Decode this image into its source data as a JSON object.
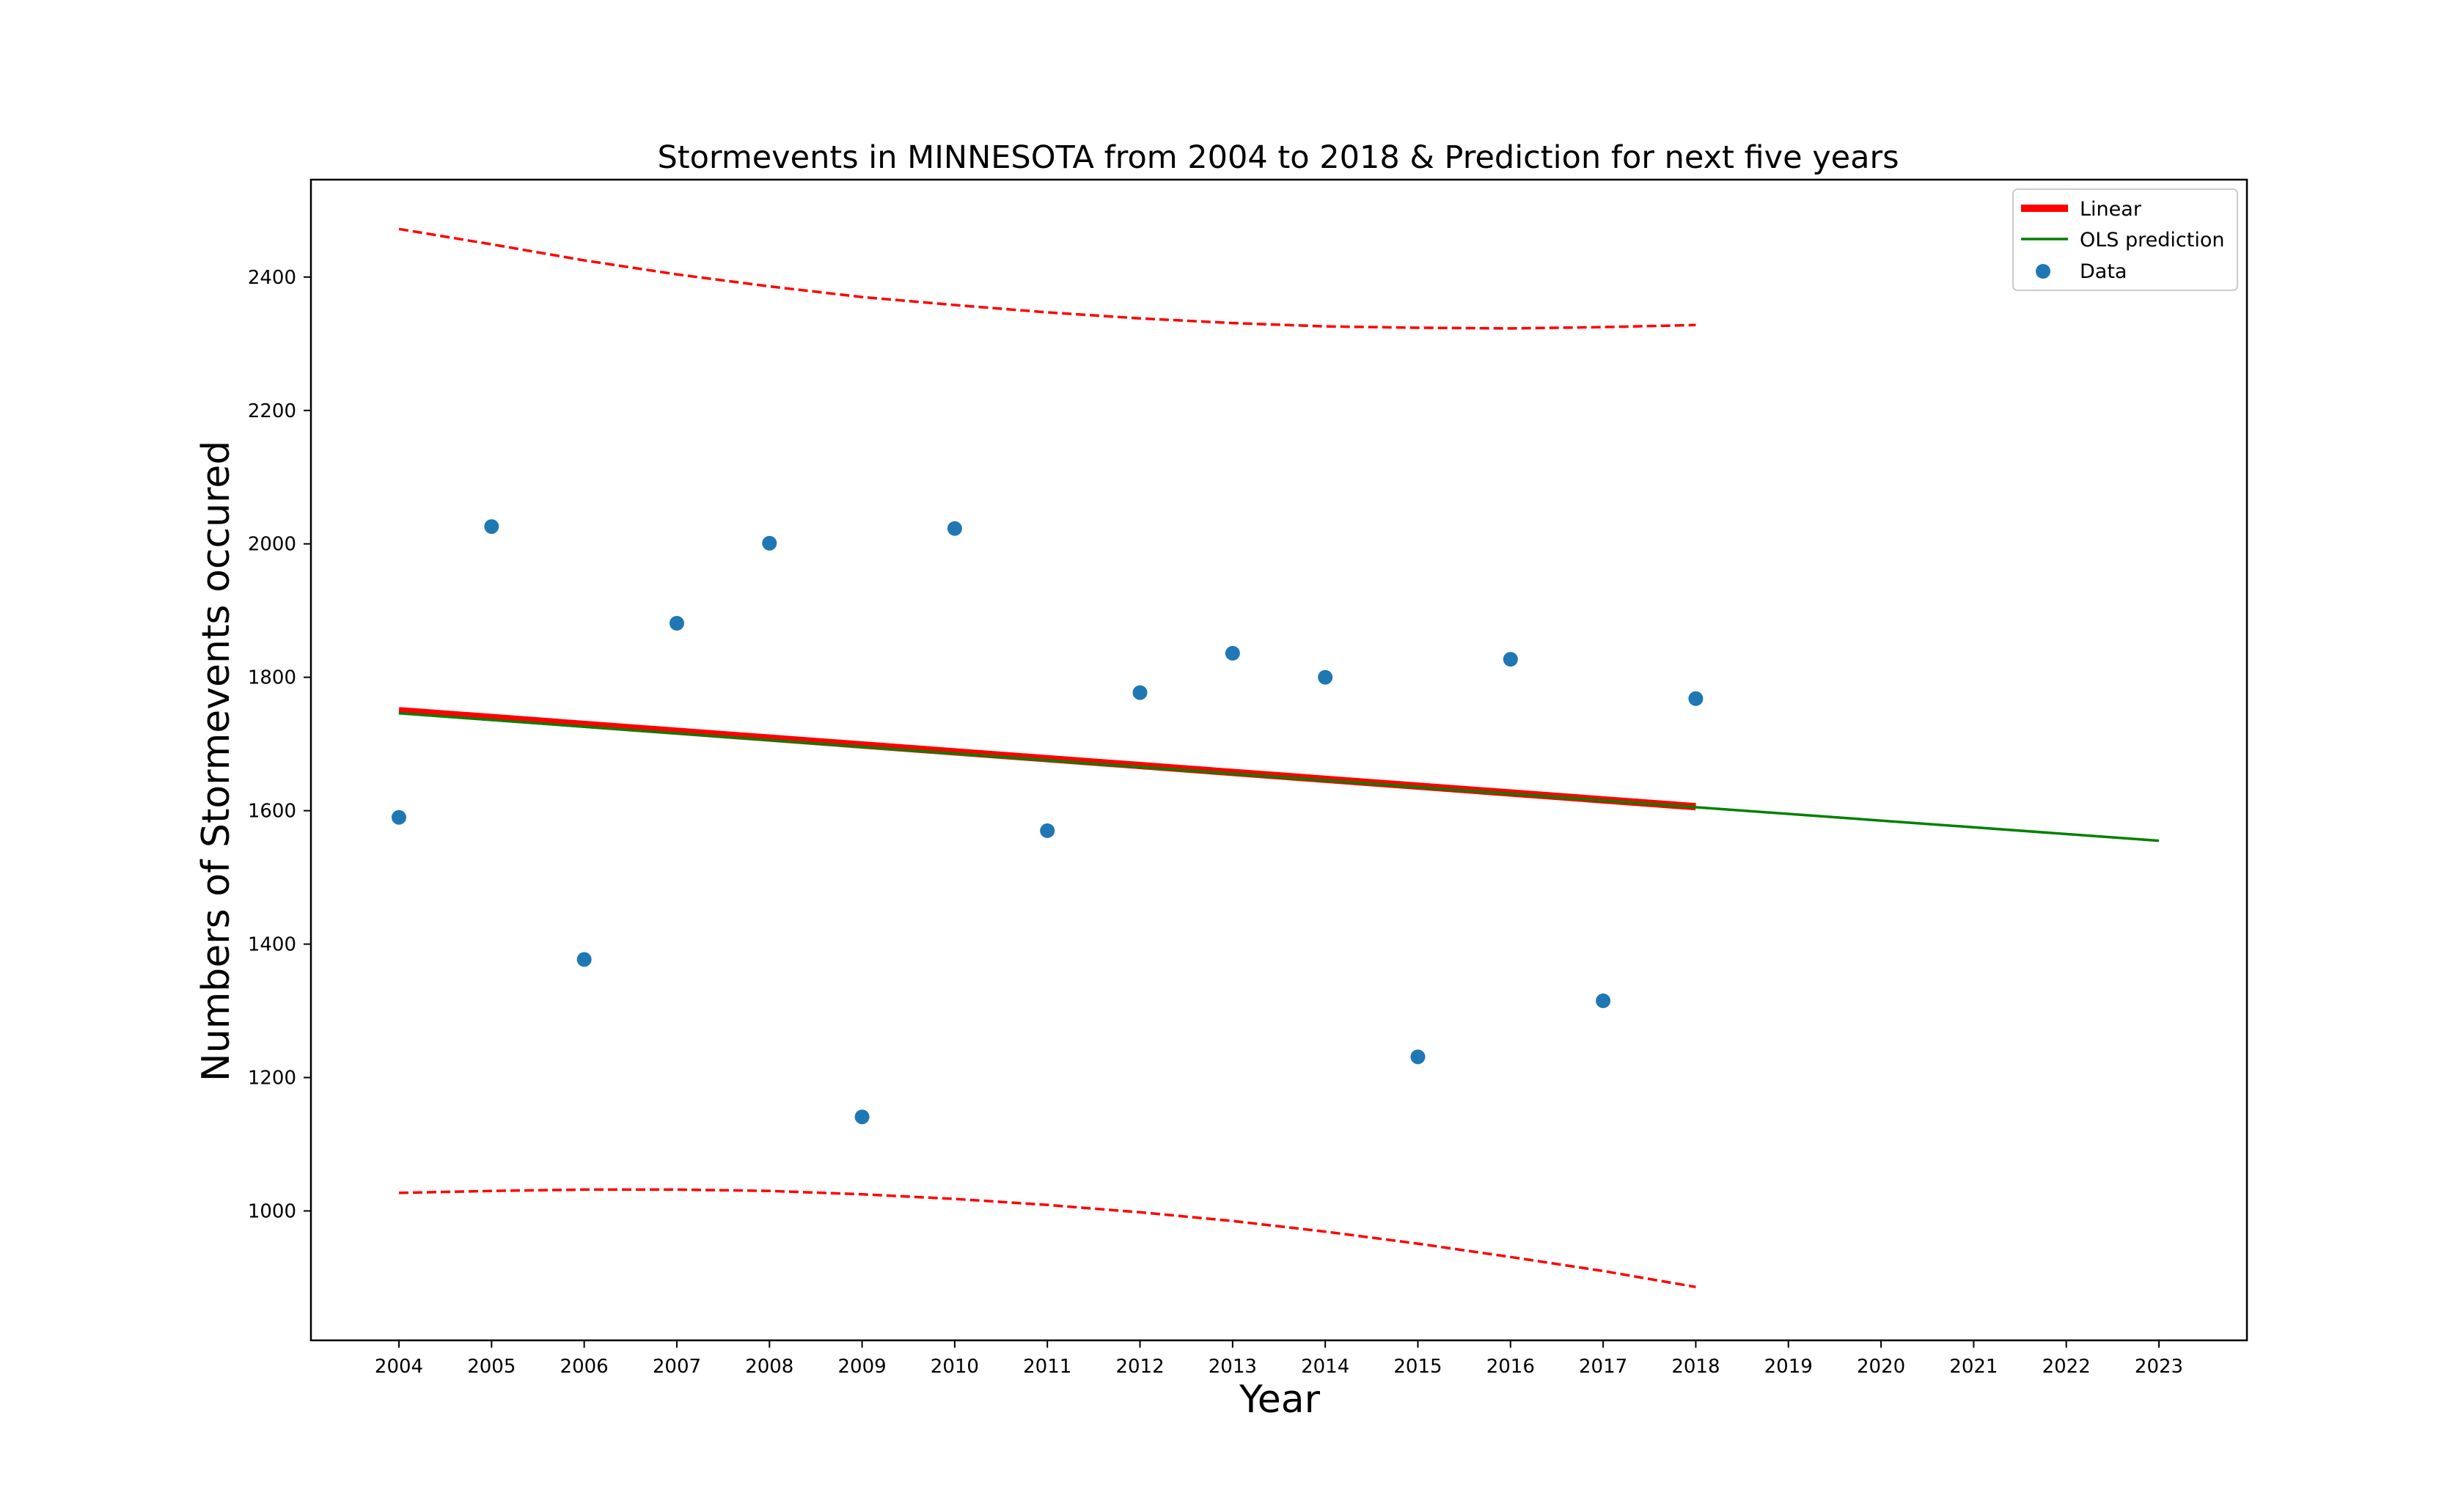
{
  "chart_data": {
    "type": "scatter",
    "title": "Stormevents in MINNESOTA from 2004 to 2018 & Prediction for next five years",
    "xlabel": "Year",
    "ylabel": "Numbers of Stormevents occured",
    "xlim": [
      2003.05,
      2023.95
    ],
    "ylim": [
      806,
      2546
    ],
    "x_ticks": [
      "2004",
      "2005",
      "2006",
      "2007",
      "2008",
      "2009",
      "2010",
      "2011",
      "2012",
      "2013",
      "2014",
      "2015",
      "2016",
      "2017",
      "2018",
      "2019",
      "2020",
      "2021",
      "2022",
      "2023"
    ],
    "y_ticks": [
      "1000",
      "1200",
      "1400",
      "1600",
      "1800",
      "2000",
      "2200",
      "2400"
    ],
    "legend_position": "top-right",
    "grid": false,
    "series": [
      {
        "name": "Data",
        "kind": "scatter",
        "color": "#1f77b4",
        "x": [
          2004,
          2005,
          2006,
          2007,
          2008,
          2009,
          2010,
          2011,
          2012,
          2013,
          2014,
          2015,
          2016,
          2017,
          2018
        ],
        "y": [
          1590,
          2026,
          1377,
          1881,
          2001,
          1141,
          2023,
          1570,
          1777,
          1836,
          1800,
          1231,
          1827,
          1315,
          1768
        ]
      },
      {
        "name": "Linear",
        "kind": "line",
        "color": "#ff0000",
        "x": [
          2004,
          2018
        ],
        "y": [
          1750,
          1606
        ]
      },
      {
        "name": "OLS prediction",
        "kind": "line",
        "color": "#008000",
        "x": [
          2004,
          2023
        ],
        "y": [
          1746,
          1555
        ]
      },
      {
        "name": "",
        "kind": "dashed",
        "color": "#ff0000",
        "x": [
          2004,
          2005,
          2006,
          2007,
          2008,
          2009,
          2010,
          2011,
          2012,
          2013,
          2014,
          2015,
          2016,
          2017,
          2018
        ],
        "y": [
          2472,
          2449,
          2425,
          2404,
          2386,
          2370,
          2358,
          2347,
          2338,
          2331,
          2326,
          2324,
          2323,
          2325,
          2328
        ]
      },
      {
        "name": "",
        "kind": "dashed",
        "color": "#ff0000",
        "x": [
          2004,
          2005,
          2006,
          2007,
          2008,
          2009,
          2010,
          2011,
          2012,
          2013,
          2014,
          2015,
          2016,
          2017,
          2018
        ],
        "y": [
          1027,
          1030,
          1032,
          1032,
          1030,
          1025,
          1018,
          1009,
          998,
          985,
          969,
          951,
          931,
          910,
          886
        ]
      }
    ],
    "legend": [
      {
        "label": "Linear",
        "color": "#ff0000",
        "symbol": "thick-line"
      },
      {
        "label": "OLS prediction",
        "color": "#008000",
        "symbol": "line"
      },
      {
        "label": "Data",
        "color": "#1f77b4",
        "symbol": "dot"
      }
    ]
  }
}
